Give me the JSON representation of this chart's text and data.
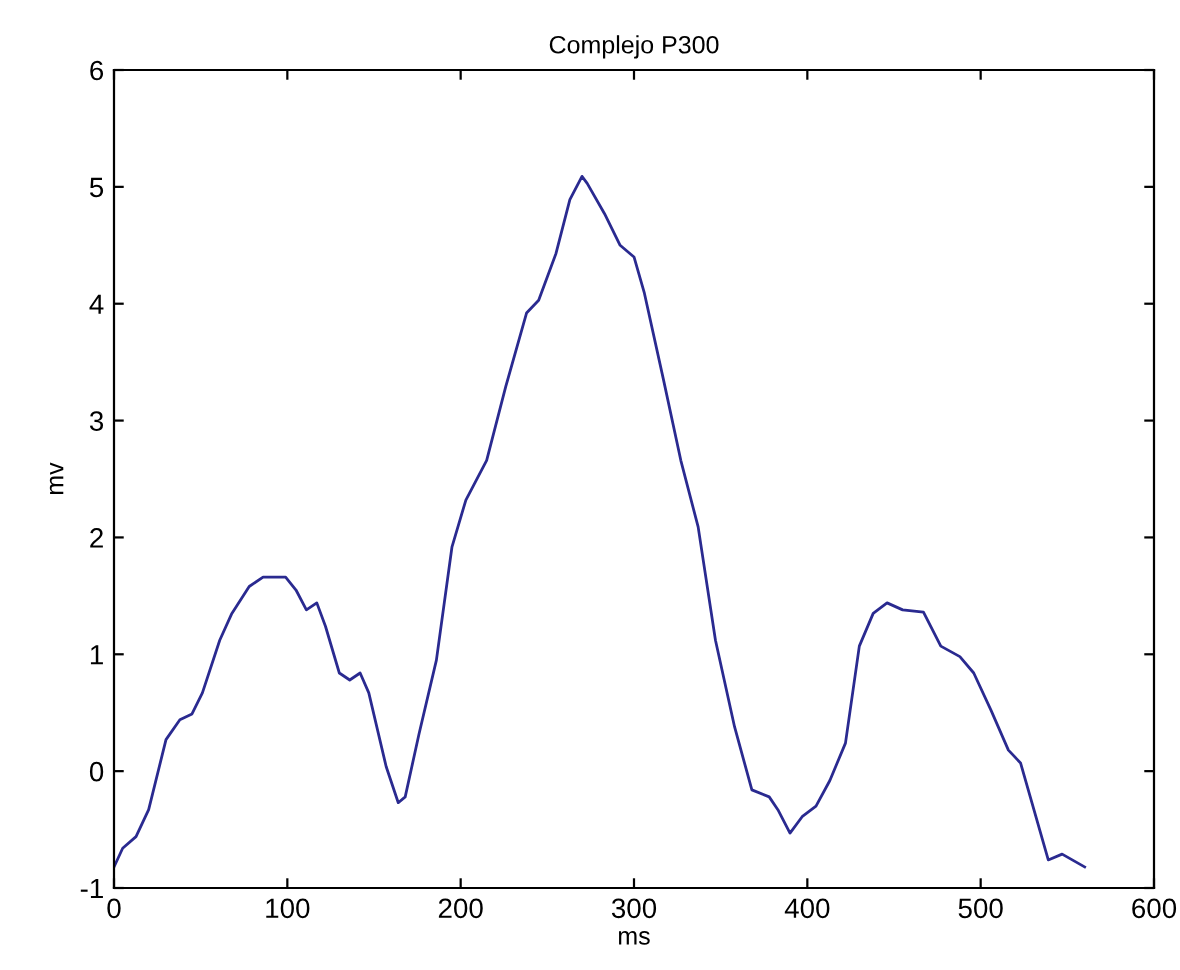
{
  "chart_data": {
    "type": "line",
    "title": "Complejo P300",
    "xlabel": "ms",
    "ylabel": "mv",
    "xlim": [
      0,
      600
    ],
    "xticks": [
      0,
      100,
      200,
      300,
      400,
      500,
      600
    ],
    "ylim": [
      -1,
      6
    ],
    "yticks": [
      -1,
      0,
      1,
      2,
      3,
      4,
      5,
      6
    ],
    "grid": false,
    "legend": false,
    "series": [
      {
        "color": "#2a2a90",
        "x": [
          0,
          5,
          12.7,
          20,
          30,
          38,
          45,
          51,
          61,
          68,
          78,
          86,
          99,
          105,
          111,
          117,
          122,
          130,
          136,
          142,
          147,
          157,
          164,
          168,
          176,
          186,
          195,
          203,
          215,
          226,
          238,
          245,
          255,
          263,
          270,
          273,
          283,
          292,
          300,
          306,
          317,
          327,
          337,
          347,
          358,
          368,
          378,
          383,
          390,
          397,
          405,
          413,
          422,
          430,
          438,
          446,
          455,
          467,
          477,
          488,
          496,
          506,
          516,
          523,
          539,
          547,
          560
        ],
        "values": [
          -0.82,
          -0.66,
          -0.56,
          -0.33,
          0.27,
          0.44,
          0.49,
          0.67,
          1.12,
          1.35,
          1.58,
          1.66,
          1.66,
          1.55,
          1.38,
          1.44,
          1.24,
          0.84,
          0.78,
          0.84,
          0.67,
          0.04,
          -0.27,
          -0.22,
          0.32,
          0.95,
          1.92,
          2.32,
          2.66,
          3.29,
          3.92,
          4.03,
          4.43,
          4.89,
          5.09,
          5.03,
          4.77,
          4.5,
          4.4,
          4.09,
          3.35,
          2.66,
          2.09,
          1.12,
          0.38,
          -0.16,
          -0.22,
          -0.33,
          -0.53,
          -0.39,
          -0.3,
          -0.08,
          0.24,
          1.07,
          1.35,
          1.44,
          1.38,
          1.36,
          1.07,
          0.98,
          0.84,
          0.52,
          0.18,
          0.07,
          -0.76,
          -0.71,
          -0.82
        ]
      }
    ]
  }
}
